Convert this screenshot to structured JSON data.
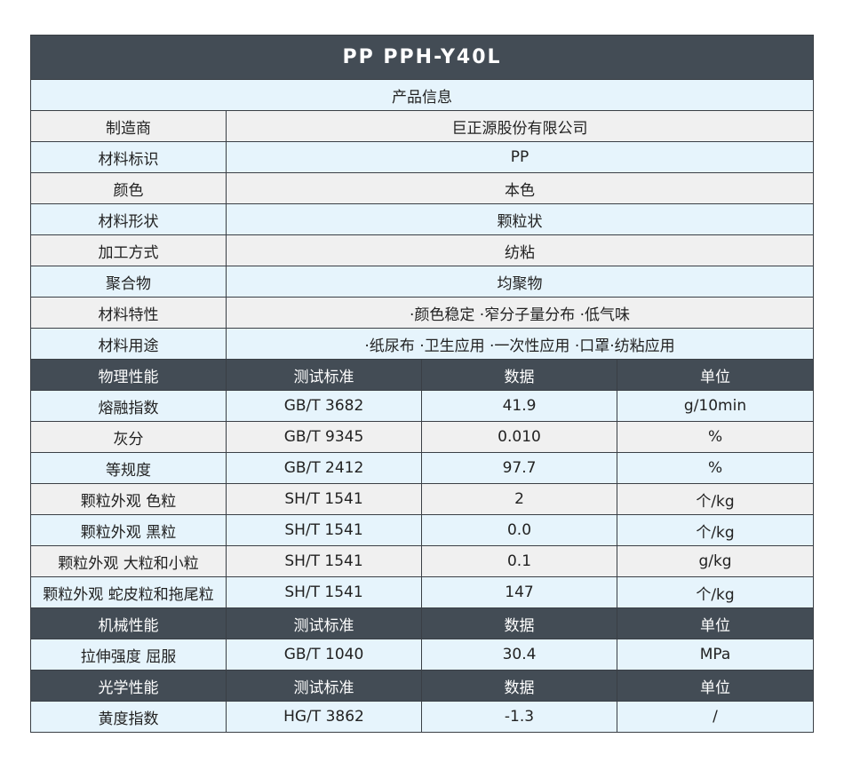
{
  "title": "PP PPH-Y40L",
  "product_info": {
    "section_label": "产品信息",
    "rows": [
      {
        "label": "制造商",
        "value": "巨正源股份有限公司"
      },
      {
        "label": "材料标识",
        "value": "PP"
      },
      {
        "label": "颜色",
        "value": "本色"
      },
      {
        "label": "材料形状",
        "value": "颗粒状"
      },
      {
        "label": "加工方式",
        "value": "纺粘"
      },
      {
        "label": "聚合物",
        "value": "均聚物"
      },
      {
        "label": "材料特性",
        "value": "·颜色稳定 ·窄分子量分布 ·低气味"
      },
      {
        "label": "材料用途",
        "value": "·纸尿布 ·卫生应用 ·一次性应用 ·口罩·纺粘应用"
      }
    ]
  },
  "property_sections": [
    {
      "header": [
        "物理性能",
        "测试标准",
        "数据",
        "单位"
      ],
      "rows": [
        [
          "熔融指数",
          "GB/T 3682",
          "41.9",
          "g/10min"
        ],
        [
          "灰分",
          "GB/T 9345",
          "0.010",
          "%"
        ],
        [
          "等规度",
          "GB/T 2412",
          "97.7",
          "%"
        ],
        [
          "颗粒外观 色粒",
          "SH/T 1541",
          "2",
          "个/kg"
        ],
        [
          "颗粒外观 黑粒",
          "SH/T 1541",
          "0.0",
          "个/kg"
        ],
        [
          "颗粒外观 大粒和小粒",
          "SH/T 1541",
          "0.1",
          "g/kg"
        ],
        [
          "颗粒外观 蛇皮粒和拖尾粒",
          "SH/T 1541",
          "147",
          "个/kg"
        ]
      ]
    },
    {
      "header": [
        "机械性能",
        "测试标准",
        "数据",
        "单位"
      ],
      "rows": [
        [
          "拉伸强度 屈服",
          "GB/T 1040",
          "30.4",
          "MPa"
        ]
      ]
    },
    {
      "header": [
        "光学性能",
        "测试标准",
        "数据",
        "单位"
      ],
      "rows": [
        [
          "黄度指数",
          "HG/T 3862",
          "-1.3",
          "/"
        ]
      ]
    }
  ],
  "colors": {
    "header_dark": "#434c55",
    "row_light_blue": "#e6f4fc",
    "row_gray": "#f0f0f0",
    "border": "#3a3f45"
  }
}
